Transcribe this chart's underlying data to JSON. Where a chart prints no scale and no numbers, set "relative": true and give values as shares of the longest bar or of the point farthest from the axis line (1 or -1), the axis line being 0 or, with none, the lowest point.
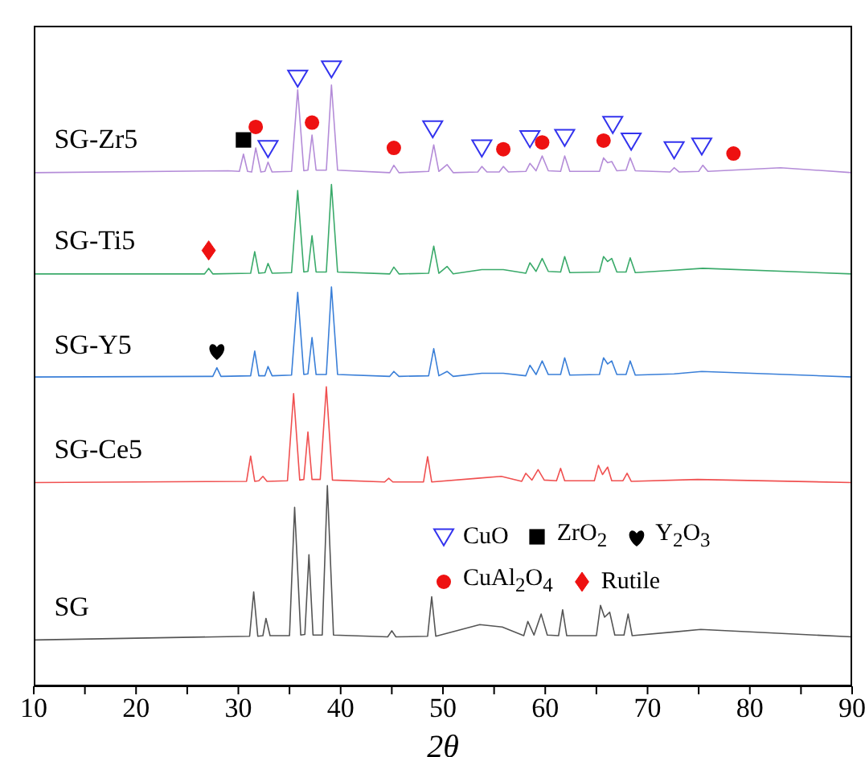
{
  "chart_data": {
    "type": "line",
    "relative": true,
    "xlabel": "2θ",
    "xlim": [
      10,
      90
    ],
    "xticks": [
      10,
      {
        "value": 15,
        "label": null
      },
      20,
      {
        "value": 25,
        "label": null
      },
      30,
      {
        "value": 35,
        "label": null
      },
      40,
      {
        "value": 45,
        "label": null
      },
      50,
      {
        "value": 55,
        "label": null
      },
      60,
      {
        "value": 65,
        "label": null
      },
      70,
      {
        "value": 75,
        "label": null
      },
      80,
      {
        "value": 85,
        "label": null
      },
      90
    ],
    "legend": "bottom right",
    "grid": false,
    "series": [
      {
        "name": "SG-Zr5",
        "color": "#b48cd8",
        "marker": "none",
        "x": [
          10,
          29,
          30.1,
          30.5,
          30.9,
          31.3,
          31.7,
          32.2,
          32.6,
          32.9,
          33.3,
          35.2,
          35.8,
          36.4,
          36.8,
          37.2,
          37.6,
          38.6,
          39.1,
          39.7,
          44.8,
          45.2,
          45.7,
          48.6,
          49.1,
          49.6,
          50.4,
          51,
          53.4,
          53.8,
          54.3,
          55.5,
          55.9,
          56.4,
          58.1,
          58.5,
          59.1,
          59.7,
          60.3,
          61.5,
          61.9,
          62.4,
          65.3,
          65.7,
          66.1,
          66.5,
          67,
          67.9,
          68.3,
          68.8,
          72.2,
          72.6,
          73.1,
          75,
          75.4,
          75.9,
          83,
          90
        ],
        "values": [
          0.832,
          0.835,
          0.834,
          0.862,
          0.834,
          0.833,
          0.872,
          0.833,
          0.834,
          0.849,
          0.833,
          0.834,
          0.966,
          0.835,
          0.836,
          0.893,
          0.836,
          0.836,
          0.974,
          0.836,
          0.832,
          0.844,
          0.832,
          0.834,
          0.877,
          0.834,
          0.845,
          0.832,
          0.833,
          0.842,
          0.833,
          0.833,
          0.842,
          0.833,
          0.834,
          0.847,
          0.835,
          0.859,
          0.835,
          0.834,
          0.859,
          0.834,
          0.834,
          0.856,
          0.848,
          0.85,
          0.835,
          0.836,
          0.856,
          0.835,
          0.833,
          0.84,
          0.833,
          0.834,
          0.844,
          0.834,
          0.84,
          0.832
        ]
      },
      {
        "name": "SG-Ti5",
        "color": "#3aaa6a",
        "marker": "none",
        "x": [
          10,
          26.7,
          27.1,
          27.5,
          31.2,
          31.6,
          32,
          32.6,
          32.9,
          33.3,
          35.2,
          35.8,
          36.4,
          36.8,
          37.2,
          37.6,
          38.6,
          39.1,
          39.7,
          44.8,
          45.2,
          45.7,
          48.6,
          49.1,
          49.6,
          50.4,
          51,
          53.8,
          55.9,
          58.1,
          58.5,
          59.1,
          59.7,
          60.3,
          61.5,
          61.9,
          62.4,
          65.3,
          65.7,
          66.1,
          66.5,
          67,
          67.9,
          68.3,
          68.8,
          72.6,
          75.4,
          90
        ],
        "values": [
          0.668,
          0.668,
          0.677,
          0.668,
          0.669,
          0.704,
          0.669,
          0.67,
          0.685,
          0.669,
          0.67,
          0.803,
          0.671,
          0.672,
          0.73,
          0.671,
          0.671,
          0.813,
          0.671,
          0.668,
          0.679,
          0.668,
          0.669,
          0.713,
          0.669,
          0.68,
          0.668,
          0.675,
          0.675,
          0.669,
          0.686,
          0.672,
          0.693,
          0.672,
          0.671,
          0.696,
          0.67,
          0.671,
          0.696,
          0.688,
          0.693,
          0.671,
          0.671,
          0.694,
          0.67,
          0.674,
          0.677,
          0.668
        ]
      },
      {
        "name": "SG-Y5",
        "color": "#3a7fd8",
        "marker": "none",
        "x": [
          10,
          27.5,
          27.9,
          28.3,
          31.2,
          31.6,
          32,
          32.6,
          32.9,
          33.3,
          35.2,
          35.8,
          36.4,
          36.8,
          37.2,
          37.6,
          38.6,
          39.1,
          39.7,
          44.8,
          45.2,
          45.7,
          48.6,
          49.1,
          49.6,
          50.4,
          51,
          53.8,
          55.9,
          58.1,
          58.5,
          59.1,
          59.7,
          60.3,
          61.5,
          61.9,
          62.4,
          65.3,
          65.7,
          66.1,
          66.5,
          67,
          67.9,
          68.3,
          68.8,
          72.6,
          75.3,
          90
        ],
        "values": [
          0.501,
          0.502,
          0.516,
          0.502,
          0.503,
          0.543,
          0.503,
          0.503,
          0.518,
          0.503,
          0.504,
          0.638,
          0.505,
          0.506,
          0.565,
          0.505,
          0.505,
          0.647,
          0.505,
          0.502,
          0.51,
          0.502,
          0.503,
          0.547,
          0.503,
          0.51,
          0.502,
          0.507,
          0.507,
          0.503,
          0.52,
          0.505,
          0.527,
          0.505,
          0.505,
          0.532,
          0.504,
          0.505,
          0.532,
          0.522,
          0.527,
          0.505,
          0.505,
          0.527,
          0.504,
          0.506,
          0.51,
          0.501
        ]
      },
      {
        "name": "SG-Ce5",
        "color": "#f05050",
        "marker": "none",
        "x": [
          10,
          30.8,
          31.2,
          31.6,
          32,
          32.4,
          32.8,
          34.8,
          35.4,
          36,
          36.4,
          36.8,
          37.2,
          38,
          38.6,
          39.2,
          44.3,
          44.7,
          45.1,
          48.1,
          48.5,
          48.9,
          53.4,
          55.7,
          57.7,
          58.1,
          58.7,
          59.3,
          59.9,
          61.1,
          61.5,
          61.9,
          64.8,
          65.2,
          65.6,
          66.1,
          66.5,
          67.6,
          68,
          68.4,
          74.9,
          90
        ],
        "values": [
          0.33,
          0.332,
          0.373,
          0.332,
          0.333,
          0.34,
          0.332,
          0.333,
          0.474,
          0.334,
          0.335,
          0.412,
          0.335,
          0.335,
          0.485,
          0.334,
          0.331,
          0.337,
          0.331,
          0.331,
          0.372,
          0.331,
          0.337,
          0.34,
          0.332,
          0.345,
          0.334,
          0.351,
          0.334,
          0.333,
          0.353,
          0.333,
          0.333,
          0.358,
          0.343,
          0.355,
          0.333,
          0.333,
          0.345,
          0.332,
          0.335,
          0.33
        ]
      },
      {
        "name": "SG",
        "color": "#555555",
        "marker": "none",
        "x": [
          10,
          20,
          31.1,
          31.5,
          31.9,
          32.4,
          32.7,
          33.1,
          35,
          35.5,
          36.1,
          36.5,
          36.9,
          37.3,
          38.2,
          38.7,
          39.3,
          44.6,
          45,
          45.4,
          48.5,
          48.9,
          49.3,
          53.6,
          55.8,
          57.9,
          58.3,
          58.9,
          59.6,
          60.2,
          61.3,
          61.7,
          62.1,
          65,
          65.4,
          65.8,
          66.3,
          66.8,
          67.7,
          68.1,
          68.5,
          72.6,
          75.2,
          90
        ],
        "values": [
          0.075,
          0.078,
          0.081,
          0.153,
          0.081,
          0.082,
          0.11,
          0.082,
          0.082,
          0.29,
          0.083,
          0.084,
          0.213,
          0.083,
          0.083,
          0.325,
          0.083,
          0.08,
          0.09,
          0.08,
          0.081,
          0.145,
          0.081,
          0.1,
          0.096,
          0.082,
          0.105,
          0.083,
          0.117,
          0.083,
          0.082,
          0.124,
          0.082,
          0.082,
          0.131,
          0.112,
          0.12,
          0.083,
          0.083,
          0.117,
          0.082,
          0.088,
          0.092,
          0.08
        ]
      },
      {
        "type": "scatter",
        "name": "CuO",
        "color": "#3333ee",
        "marker": "triangle",
        "x": [
          32.9,
          35.8,
          39.1,
          49,
          53.8,
          58.5,
          61.9,
          66.6,
          68.4,
          72.6,
          75.3
        ],
        "values": [
          0.871,
          0.985,
          1,
          0.903,
          0.872,
          0.887,
          0.889,
          0.91,
          0.883,
          0.869,
          0.875
        ]
      },
      {
        "type": "scatter",
        "name": "ZrO$_{2}$",
        "color": "#000000",
        "marker": "square",
        "x": [
          30.5
        ],
        "values": [
          0.885
        ]
      },
      {
        "type": "scatter",
        "name": "Y$_{2}$O$_{3}$",
        "color": "#000000",
        "x": [
          27.9
        ],
        "values": [
          0.544
        ]
      },
      {
        "type": "scatter",
        "name": "CuAl$_{2}$O$_{4}$",
        "color": "#ee1111",
        "marker": "circle",
        "x": [
          31.7,
          37.2,
          45.2,
          55.9,
          59.7,
          65.7,
          78.4
        ],
        "values": [
          0.906,
          0.913,
          0.872,
          0.87,
          0.881,
          0.884,
          0.863
        ]
      },
      {
        "type": "scatter",
        "name": "Rutile",
        "color": "#ee1111",
        "marker": "diamond",
        "x": [
          27.1
        ],
        "values": [
          0.706
        ]
      }
    ]
  }
}
